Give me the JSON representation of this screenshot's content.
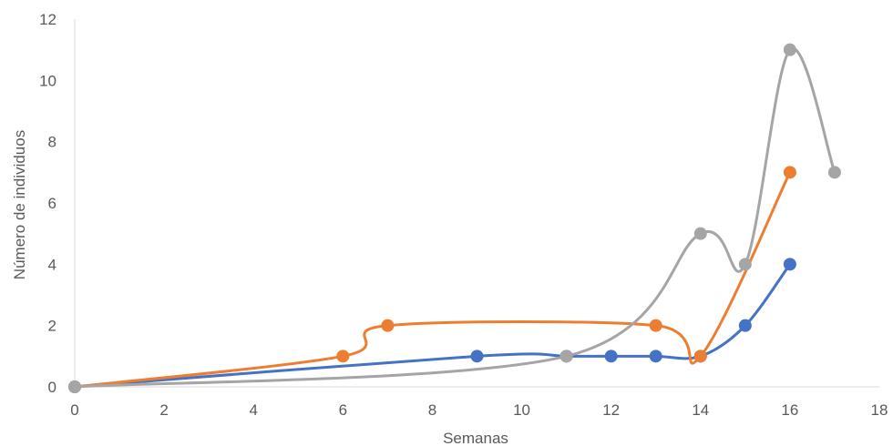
{
  "chart_data": {
    "type": "scatter",
    "title": "",
    "xlabel": "Semanas",
    "ylabel": "Número de individuos",
    "xlim": [
      0,
      18
    ],
    "ylim": [
      0,
      12
    ],
    "xticks": [
      "0",
      "2",
      "4",
      "6",
      "8",
      "10",
      "12",
      "14",
      "16",
      "18"
    ],
    "yticks": [
      "0",
      "2",
      "4",
      "6",
      "8",
      "10",
      "12"
    ],
    "grid": false,
    "smoothed_lines": true,
    "series": [
      {
        "color": "#4472C4",
        "points": [
          [
            0,
            0
          ],
          [
            9,
            1
          ],
          [
            11,
            1
          ],
          [
            12,
            1
          ],
          [
            13,
            1
          ],
          [
            14,
            1
          ],
          [
            15,
            2
          ],
          [
            16,
            4
          ]
        ]
      },
      {
        "color": "#ED7D31",
        "points": [
          [
            0,
            0
          ],
          [
            6,
            1
          ],
          [
            7,
            2
          ],
          [
            13,
            2
          ],
          [
            14,
            1
          ],
          [
            16,
            7
          ]
        ]
      },
      {
        "color": "#A5A5A5",
        "points": [
          [
            0,
            0
          ],
          [
            11,
            1
          ],
          [
            14,
            5
          ],
          [
            15,
            4
          ],
          [
            16,
            11
          ],
          [
            17,
            7
          ]
        ]
      }
    ]
  }
}
